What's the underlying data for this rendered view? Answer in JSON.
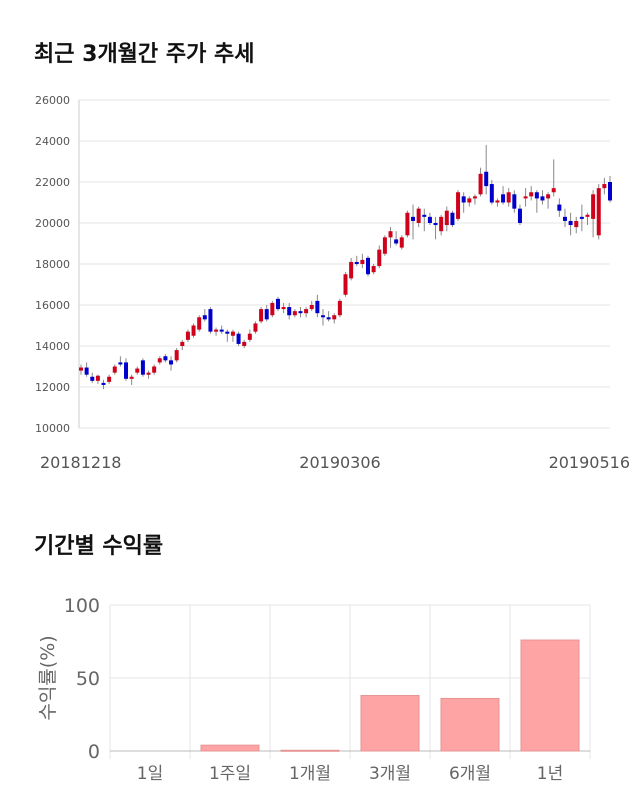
{
  "sections": {
    "price_title": "최근 3개월간 주가 추세",
    "return_title": "기간별 수익률"
  },
  "colors": {
    "up": "#d0021b",
    "down": "#0000cc",
    "bar": "#ffa4a4",
    "bar_border": "#e69494",
    "grid": "#e5e5e5"
  },
  "chart_data": [
    {
      "type": "candlestick",
      "title": "최근 3개월간 주가 추세",
      "ylim": [
        10000,
        26000
      ],
      "yticks": [
        10000,
        12000,
        14000,
        16000,
        18000,
        20000,
        22000,
        24000,
        26000
      ],
      "xticks": [
        "20181218",
        "20190306",
        "20190516"
      ],
      "grid": true,
      "series": [
        [
          12800,
          13100,
          12600,
          12950
        ],
        [
          12950,
          13200,
          12500,
          12600
        ],
        [
          12500,
          12700,
          12200,
          12300
        ],
        [
          12300,
          12600,
          12150,
          12550
        ],
        [
          12200,
          12350,
          11900,
          12100
        ],
        [
          12250,
          12600,
          12150,
          12500
        ],
        [
          12700,
          13100,
          12600,
          13000
        ],
        [
          13200,
          13500,
          13000,
          13100
        ],
        [
          13200,
          13400,
          12300,
          12400
        ],
        [
          12400,
          12600,
          12100,
          12500
        ],
        [
          12700,
          13000,
          12600,
          12900
        ],
        [
          13300,
          13400,
          12500,
          12600
        ],
        [
          12600,
          12800,
          12400,
          12700
        ],
        [
          12700,
          13100,
          12600,
          13000
        ],
        [
          13200,
          13500,
          13100,
          13400
        ],
        [
          13500,
          13600,
          13200,
          13300
        ],
        [
          13300,
          13500,
          12800,
          13100
        ],
        [
          13300,
          13900,
          13200,
          13800
        ],
        [
          14000,
          14300,
          13800,
          14200
        ],
        [
          14300,
          14800,
          14200,
          14700
        ],
        [
          14500,
          15100,
          14400,
          15000
        ],
        [
          14800,
          15500,
          14700,
          15400
        ],
        [
          15500,
          15800,
          15200,
          15300
        ],
        [
          15800,
          15900,
          14600,
          14700
        ],
        [
          14700,
          14900,
          14500,
          14800
        ],
        [
          14800,
          15000,
          14600,
          14700
        ],
        [
          14700,
          14800,
          14200,
          14600
        ],
        [
          14500,
          14800,
          14200,
          14700
        ],
        [
          14600,
          14700,
          14000,
          14100
        ],
        [
          14000,
          14300,
          13900,
          14200
        ],
        [
          14300,
          14800,
          14200,
          14600
        ],
        [
          14700,
          15200,
          14600,
          15100
        ],
        [
          15200,
          15900,
          15100,
          15800
        ],
        [
          15800,
          16000,
          15200,
          15300
        ],
        [
          15500,
          16200,
          15400,
          16100
        ],
        [
          16300,
          16400,
          15700,
          15800
        ],
        [
          15800,
          16100,
          15600,
          15900
        ],
        [
          15900,
          16100,
          15300,
          15500
        ],
        [
          15500,
          15800,
          15400,
          15700
        ],
        [
          15700,
          15900,
          15400,
          15600
        ],
        [
          15600,
          15900,
          15400,
          15800
        ],
        [
          15800,
          16200,
          15700,
          16000
        ],
        [
          16200,
          16500,
          15400,
          15600
        ],
        [
          15500,
          15800,
          15000,
          15400
        ],
        [
          15400,
          15700,
          15200,
          15300
        ],
        [
          15300,
          15600,
          15100,
          15500
        ],
        [
          15500,
          16300,
          15400,
          16200
        ],
        [
          16500,
          17600,
          16400,
          17500
        ],
        [
          17300,
          18300,
          17200,
          18100
        ],
        [
          18100,
          18400,
          17900,
          18000
        ],
        [
          18000,
          18500,
          17800,
          18200
        ],
        [
          18300,
          18400,
          17400,
          17500
        ],
        [
          17600,
          18000,
          17500,
          17900
        ],
        [
          17900,
          18900,
          17800,
          18700
        ],
        [
          18500,
          19400,
          18400,
          19300
        ],
        [
          19300,
          19800,
          18800,
          19600
        ],
        [
          19200,
          19600,
          18900,
          19000
        ],
        [
          18800,
          19400,
          18700,
          19300
        ],
        [
          19400,
          20600,
          19300,
          20500
        ],
        [
          20300,
          20900,
          19200,
          20100
        ],
        [
          20000,
          20800,
          19800,
          20700
        ],
        [
          20400,
          20700,
          19600,
          20300
        ],
        [
          20300,
          20500,
          19900,
          20000
        ],
        [
          20000,
          20300,
          19200,
          19900
        ],
        [
          19600,
          20400,
          19400,
          20300
        ],
        [
          19900,
          20800,
          19600,
          20600
        ],
        [
          20500,
          20600,
          19800,
          19900
        ],
        [
          20200,
          21600,
          20100,
          21500
        ],
        [
          21300,
          21500,
          20500,
          21000
        ],
        [
          21000,
          21300,
          20800,
          21200
        ],
        [
          21200,
          21400,
          20900,
          21300
        ],
        [
          21400,
          22700,
          21300,
          22400
        ],
        [
          22500,
          23800,
          21400,
          21800
        ],
        [
          21900,
          22100,
          20900,
          21000
        ],
        [
          21000,
          21200,
          20800,
          21100
        ],
        [
          21400,
          21800,
          20900,
          21000
        ],
        [
          21000,
          21700,
          20800,
          21500
        ],
        [
          21400,
          21600,
          20500,
          20700
        ],
        [
          20700,
          20900,
          19900,
          20000
        ],
        [
          21200,
          21700,
          20800,
          21300
        ],
        [
          21300,
          21800,
          21100,
          21500
        ],
        [
          21500,
          21600,
          20500,
          21200
        ],
        [
          21300,
          21600,
          20900,
          21100
        ],
        [
          21200,
          21500,
          20700,
          21400
        ],
        [
          21500,
          23100,
          21300,
          21700
        ],
        [
          20900,
          21200,
          20300,
          20600
        ],
        [
          20300,
          20700,
          19800,
          20100
        ],
        [
          20100,
          20500,
          19400,
          19900
        ],
        [
          19800,
          20300,
          19500,
          20100
        ],
        [
          20300,
          20900,
          19600,
          20200
        ],
        [
          20300,
          20500,
          19900,
          20400
        ],
        [
          20200,
          21600,
          19300,
          21400
        ],
        [
          19400,
          21900,
          19200,
          21700
        ],
        [
          21700,
          22200,
          21400,
          21900
        ],
        [
          22000,
          22300,
          21000,
          21100
        ]
      ]
    },
    {
      "type": "bar",
      "ylabel": "수익률(%)",
      "ylim": [
        0,
        100
      ],
      "yticks": [
        0,
        50,
        100
      ],
      "categories": [
        "1일",
        "1주일",
        "1개월",
        "3개월",
        "6개월",
        "1년"
      ],
      "values": [
        0,
        4,
        0.5,
        38,
        36,
        76
      ],
      "grid": true
    }
  ]
}
